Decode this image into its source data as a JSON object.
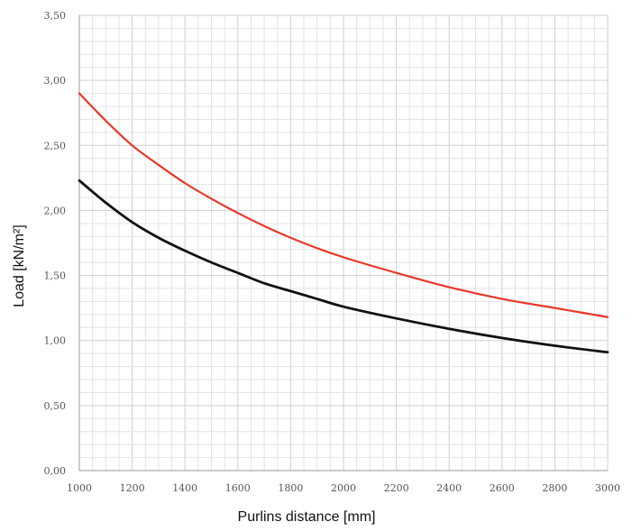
{
  "chart_data": {
    "type": "line",
    "xlabel": "Purlins distance [mm]",
    "ylabel": "Load [kN/m²]",
    "xlim": [
      1000,
      3000
    ],
    "ylim": [
      0,
      3.5
    ],
    "xticks": [
      "1000",
      "1200",
      "1400",
      "1600",
      "1800",
      "2000",
      "2200",
      "2400",
      "2600",
      "2800",
      "3000"
    ],
    "yticks": [
      "0,00",
      "0,50",
      "1,00",
      "1,50",
      "2,00",
      "2,50",
      "3,00",
      "3,50"
    ],
    "x": [
      1000,
      1100,
      1200,
      1300,
      1400,
      1500,
      1600,
      1700,
      1800,
      1900,
      2000,
      2200,
      2400,
      2600,
      2800,
      3000
    ],
    "grid": true,
    "series": [
      {
        "color": "#e8382a",
        "values": [
          2.9,
          2.69,
          2.5,
          2.35,
          2.21,
          2.09,
          1.98,
          1.88,
          1.79,
          1.71,
          1.64,
          1.52,
          1.41,
          1.32,
          1.25,
          1.18
        ]
      },
      {
        "color": "#111111",
        "values": [
          2.23,
          2.06,
          1.91,
          1.79,
          1.69,
          1.6,
          1.52,
          1.44,
          1.38,
          1.32,
          1.26,
          1.17,
          1.09,
          1.02,
          0.96,
          0.91
        ]
      }
    ]
  }
}
